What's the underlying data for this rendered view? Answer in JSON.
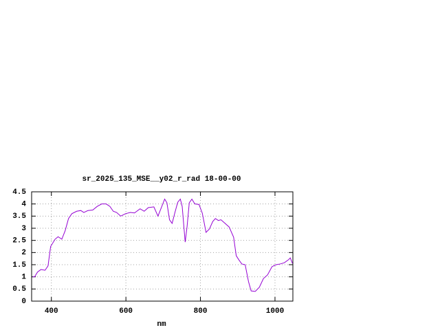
{
  "chart_data": {
    "type": "line",
    "title": "sr_2025_135_MSE__y02_r_rad 18-00-00",
    "x_label": "nm",
    "series": [
      {
        "color": "#9400d3",
        "x": [
          350,
          355,
          363,
          372,
          383,
          391,
          398,
          410,
          418,
          428,
          437,
          446,
          455,
          468,
          479,
          487,
          498,
          511,
          523,
          535,
          547,
          557,
          566,
          575,
          586,
          599,
          612,
          623,
          638,
          649,
          660,
          675,
          686,
          693,
          704,
          710,
          717,
          724,
          731,
          739,
          746,
          751,
          759,
          764,
          770,
          777,
          785,
          796,
          805,
          815,
          824,
          833,
          840,
          848,
          855,
          866,
          877,
          889,
          896,
          903,
          911,
          920,
          929,
          936,
          947,
          958,
          969,
          980,
          992,
          1003,
          1014,
          1025,
          1036,
          1041,
          1047
        ],
        "values": [
          1.0,
          1.0,
          1.2,
          1.3,
          1.27,
          1.45,
          2.25,
          2.55,
          2.65,
          2.55,
          2.9,
          3.4,
          3.6,
          3.7,
          3.73,
          3.65,
          3.73,
          3.75,
          3.9,
          4.0,
          4.0,
          3.9,
          3.7,
          3.65,
          3.5,
          3.6,
          3.65,
          3.63,
          3.8,
          3.7,
          3.85,
          3.88,
          3.5,
          3.77,
          4.2,
          4.05,
          3.35,
          3.2,
          3.62,
          4.07,
          4.2,
          3.9,
          2.43,
          3.05,
          4.05,
          4.2,
          4.0,
          3.98,
          3.62,
          2.83,
          2.97,
          3.28,
          3.4,
          3.32,
          3.35,
          3.2,
          3.05,
          2.63,
          1.87,
          1.7,
          1.53,
          1.5,
          0.8,
          0.42,
          0.4,
          0.57,
          0.93,
          1.08,
          1.42,
          1.5,
          1.53,
          1.58,
          1.7,
          1.78,
          1.55
        ]
      }
    ],
    "xlim": [
      347,
      1048
    ],
    "xticks": [
      400,
      600,
      800,
      1000
    ],
    "ylim": [
      0,
      4.5
    ],
    "yticks": [
      0,
      0.5,
      1,
      1.5,
      2,
      2.5,
      3,
      3.5,
      4,
      4.5
    ],
    "grid": true
  }
}
